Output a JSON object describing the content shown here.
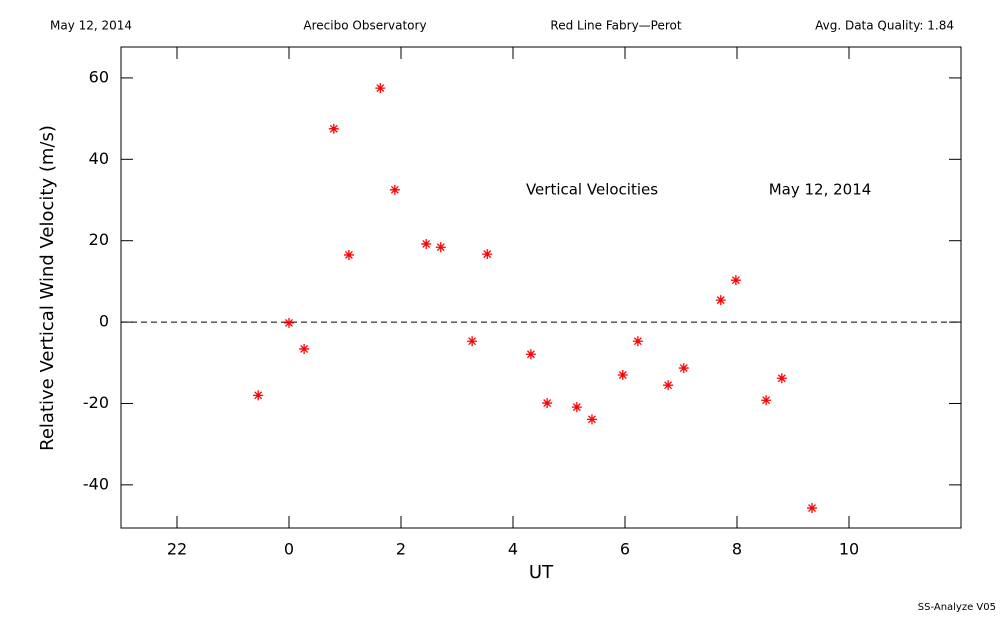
{
  "chart_data": {
    "type": "scatter",
    "header": [
      "May 12, 2014",
      "Arecibo Observatory",
      "Red Line Fabry—Perot",
      "Avg. Data Quality: 1.84"
    ],
    "annotations": [
      "Vertical Velocities",
      "May 12, 2014"
    ],
    "footer": "SS-Analyze V05",
    "x_label": "UT",
    "y_label": "Relative Vertical Wind Velocity (m/s)",
    "x": [
      -0.55,
      0,
      0.27,
      0.8,
      1.07,
      1.63,
      1.89,
      2.45,
      2.71,
      3.27,
      3.54,
      4.32,
      4.61,
      5.14,
      5.41,
      5.96,
      6.23,
      6.77,
      7.05,
      7.71,
      7.98,
      8.52,
      8.8,
      9.34
    ],
    "values": [
      -18,
      -0.2,
      -6.6,
      47.5,
      16.5,
      57.5,
      32.5,
      19.2,
      18.4,
      -4.7,
      16.7,
      -7.9,
      -19.9,
      -20.9,
      -23.9,
      -13,
      -4.7,
      -15.5,
      -11.3,
      5.4,
      10.3,
      -19.2,
      -13.8,
      -45.7
    ],
    "color": "#ff0000",
    "xlim": [
      -3,
      12
    ],
    "xticks": [
      {
        "value": -2,
        "label": "22"
      },
      0,
      2,
      4,
      6,
      8,
      10
    ],
    "ylim": [
      -50.6,
      67.6
    ],
    "yticks": [
      -40,
      -20,
      0,
      20,
      40,
      60
    ],
    "hline": 0
  }
}
